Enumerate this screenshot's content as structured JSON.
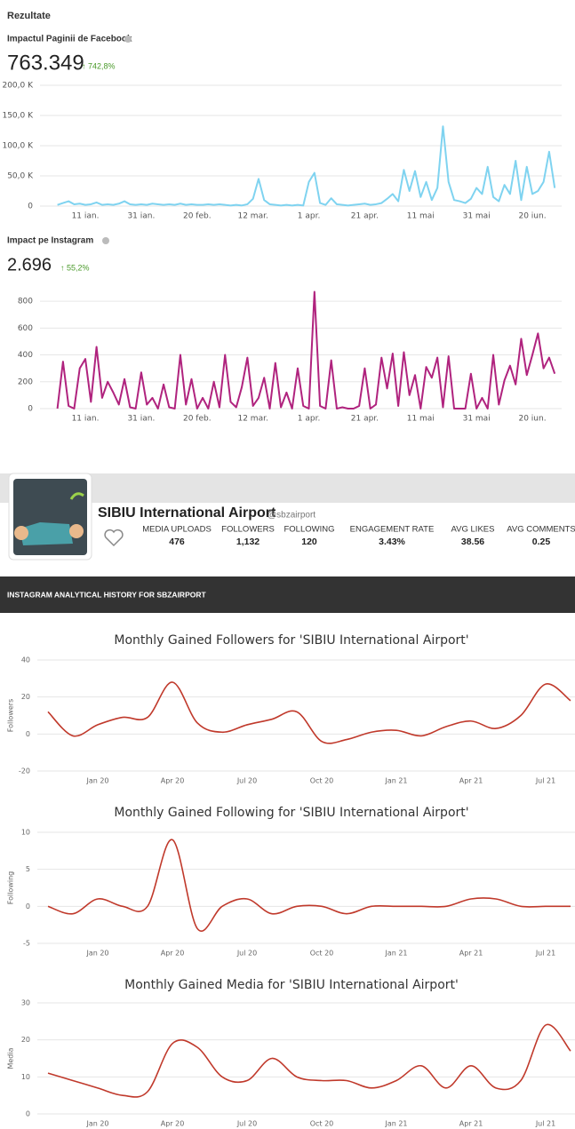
{
  "header": {
    "title": "Rezultate"
  },
  "chart_data": [
    {
      "type": "line",
      "title": "Impactul Paginii de Facebook",
      "total": "763.349",
      "change": "↑ 742,8%",
      "color": "#7fd3f0",
      "categories": [
        null,
        null,
        null,
        null,
        null,
        "11 ian.",
        null,
        null,
        null,
        null,
        null,
        null,
        null,
        null,
        null,
        "31 ian.",
        null,
        null,
        null,
        null,
        null,
        null,
        null,
        null,
        null,
        "20 feb.",
        null,
        null,
        null,
        null,
        null,
        null,
        null,
        null,
        null,
        "12 mar.",
        null,
        null,
        null,
        null,
        null,
        null,
        null,
        null,
        null,
        "1 apr.",
        null,
        null,
        null,
        null,
        null,
        null,
        null,
        null,
        null,
        "21 apr.",
        null,
        null,
        null,
        null,
        null,
        null,
        null,
        null,
        null,
        "11 mai",
        null,
        null,
        null,
        null,
        null,
        null,
        null,
        null,
        null,
        "31 mai",
        null,
        null,
        null,
        null,
        null,
        null,
        null,
        null,
        null,
        "20 iun.",
        null,
        null,
        null,
        null
      ],
      "values": [
        2000,
        5000,
        8000,
        3000,
        4000,
        2000,
        3000,
        6000,
        2000,
        3000,
        2000,
        4000,
        8000,
        3000,
        2000,
        3000,
        2000,
        4000,
        3000,
        2000,
        3000,
        2000,
        4000,
        2000,
        3000,
        2000,
        2000,
        3000,
        2000,
        3000,
        2000,
        1000,
        2000,
        1000,
        3000,
        12000,
        45000,
        10000,
        3000,
        2000,
        1000,
        2000,
        1000,
        2000,
        1000,
        40000,
        55000,
        5000,
        2000,
        13000,
        3000,
        2000,
        1000,
        2000,
        3000,
        4000,
        2000,
        3000,
        5000,
        12000,
        20000,
        8000,
        60000,
        25000,
        58000,
        15000,
        40000,
        10000,
        30000,
        132000,
        40000,
        10000,
        8000,
        5000,
        12000,
        30000,
        20000,
        65000,
        15000,
        8000,
        35000,
        20000,
        75000,
        10000,
        65000,
        20000,
        25000,
        40000,
        90000,
        30000
      ],
      "ylim": [
        0,
        200000
      ],
      "yticks": [
        {
          "value": 0,
          "label": "0"
        },
        {
          "value": 50000,
          "label": "50,0 K"
        },
        {
          "value": 100000,
          "label": "100,0 K"
        },
        {
          "value": 150000,
          "label": "150,0 K"
        },
        {
          "value": 200000,
          "label": "200,0 K"
        }
      ],
      "grid": true
    },
    {
      "type": "line",
      "title": "Impact pe Instagram",
      "total": "2.696",
      "change": "↑ 55,2%",
      "color": "#b0237e",
      "categories": [
        null,
        null,
        null,
        null,
        null,
        "11 ian.",
        null,
        null,
        null,
        null,
        null,
        null,
        null,
        null,
        null,
        "31 ian.",
        null,
        null,
        null,
        null,
        null,
        null,
        null,
        null,
        null,
        "20 feb.",
        null,
        null,
        null,
        null,
        null,
        null,
        null,
        null,
        null,
        "12 mar.",
        null,
        null,
        null,
        null,
        null,
        null,
        null,
        null,
        null,
        "1 apr.",
        null,
        null,
        null,
        null,
        null,
        null,
        null,
        null,
        null,
        "21 apr.",
        null,
        null,
        null,
        null,
        null,
        null,
        null,
        null,
        null,
        "11 mai",
        null,
        null,
        null,
        null,
        null,
        null,
        null,
        null,
        null,
        "31 mai",
        null,
        null,
        null,
        null,
        null,
        null,
        null,
        null,
        null,
        "20 iun.",
        null,
        null,
        null,
        null
      ],
      "values": [
        0,
        350,
        20,
        0,
        300,
        370,
        50,
        460,
        80,
        200,
        120,
        30,
        220,
        10,
        0,
        270,
        30,
        80,
        0,
        180,
        10,
        0,
        400,
        30,
        220,
        0,
        80,
        0,
        200,
        10,
        400,
        50,
        10,
        160,
        380,
        20,
        80,
        230,
        0,
        340,
        10,
        120,
        0,
        300,
        20,
        0,
        870,
        20,
        0,
        360,
        0,
        10,
        0,
        0,
        20,
        300,
        0,
        30,
        380,
        150,
        410,
        20,
        420,
        100,
        250,
        0,
        310,
        230,
        380,
        10,
        390,
        0,
        0,
        0,
        260,
        0,
        80,
        0,
        400,
        30,
        210,
        320,
        180,
        520,
        250,
        400,
        560,
        300,
        380,
        260
      ],
      "ylim": [
        0,
        900
      ],
      "yticks": [
        0,
        200,
        400,
        600,
        800
      ],
      "grid": true
    },
    {
      "type": "line",
      "title": "Monthly Gained Followers for 'SIBIU International Airport'",
      "y_label": "Followers",
      "color": "#c0392b",
      "smooth": true,
      "categories": [
        null,
        null,
        "Jan 20",
        null,
        null,
        "Apr 20",
        null,
        null,
        "Jul 20",
        null,
        null,
        "Oct 20",
        null,
        null,
        "Jan 21",
        null,
        null,
        "Apr 21",
        null,
        null,
        "Jul 21",
        null
      ],
      "values": [
        12,
        -1,
        5,
        9,
        9,
        28,
        6,
        1,
        5,
        8,
        12,
        -4,
        -3,
        1,
        2,
        -1,
        4,
        7,
        3,
        10,
        27,
        18
      ],
      "ylim": [
        -20,
        40
      ],
      "yticks": [
        -20,
        0,
        20,
        40
      ],
      "grid": true
    },
    {
      "type": "line",
      "title": "Monthly Gained Following for 'SIBIU International Airport'",
      "y_label": "Following",
      "color": "#c0392b",
      "smooth": true,
      "categories": [
        null,
        null,
        "Jan 20",
        null,
        null,
        "Apr 20",
        null,
        null,
        "Jul 20",
        null,
        null,
        "Oct 20",
        null,
        null,
        "Jan 21",
        null,
        null,
        "Apr 21",
        null,
        null,
        "Jul 21",
        null
      ],
      "values": [
        0,
        -1,
        1,
        0,
        0,
        9,
        -3,
        0,
        1,
        -1,
        0,
        0,
        -1,
        0,
        0,
        0,
        0,
        1,
        1,
        0,
        0,
        0
      ],
      "ylim": [
        -5,
        10
      ],
      "yticks": [
        -5,
        0,
        5,
        10
      ],
      "grid": true
    },
    {
      "type": "line",
      "title": "Monthly Gained Media for 'SIBIU International Airport'",
      "y_label": "Media",
      "color": "#c0392b",
      "smooth": true,
      "categories": [
        null,
        null,
        "Jan 20",
        null,
        null,
        "Apr 20",
        null,
        null,
        "Jul 20",
        null,
        null,
        "Oct 20",
        null,
        null,
        "Jan 21",
        null,
        null,
        "Apr 21",
        null,
        null,
        "Jul 21",
        null
      ],
      "values": [
        11,
        9,
        7,
        5,
        6,
        19,
        18,
        10,
        9,
        15,
        10,
        9,
        9,
        7,
        9,
        13,
        7,
        13,
        7,
        9,
        24,
        17
      ],
      "ylim": [
        0,
        30
      ],
      "yticks": [
        0,
        10,
        20,
        30
      ],
      "grid": true
    }
  ],
  "profile": {
    "name": "SIBIU International Airport",
    "handle": "@sbzairport",
    "stats": [
      {
        "label": "MEDIA UPLOADS",
        "value": "476"
      },
      {
        "label": "FOLLOWERS",
        "value": "1,132"
      },
      {
        "label": "FOLLOWING",
        "value": "120"
      },
      {
        "label": "ENGAGEMENT RATE",
        "value": "3.43%"
      },
      {
        "label": "AVG LIKES",
        "value": "38.56"
      },
      {
        "label": "AVG COMMENTS",
        "value": "0.25"
      }
    ]
  },
  "banner": {
    "title": "INSTAGRAM ANALYTICAL HISTORY FOR SBZAIRPORT"
  }
}
